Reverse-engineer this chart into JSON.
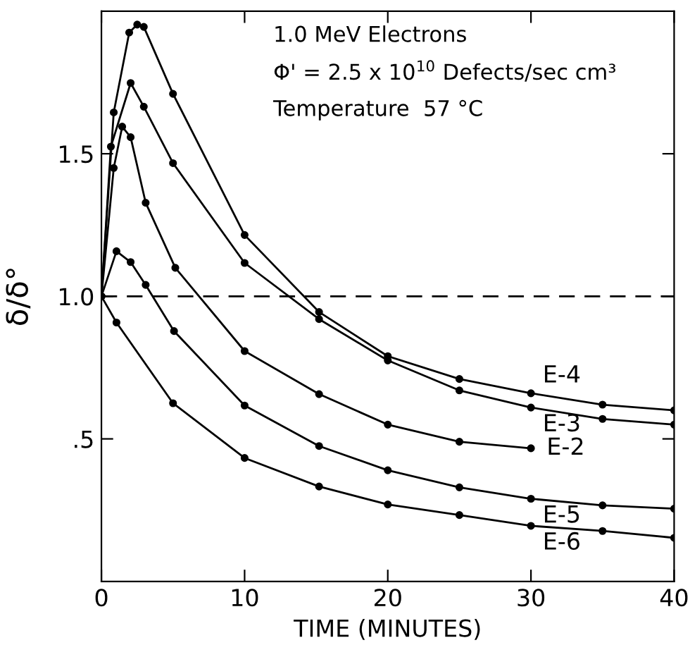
{
  "chart_data": {
    "type": "line",
    "xlabel": "TIME (MINUTES)",
    "ylabel": "δ/δ°",
    "annotations": [
      "1.0 MeV Electrons",
      "Φ' = 2.5 x 10$^{10}$ Defects/sec cm³",
      "Temperature  57 °C"
    ],
    "xlim": [
      0,
      40
    ],
    "ylim": [
      0,
      2.0
    ],
    "xticks": [
      0,
      10,
      20,
      30,
      40
    ],
    "yticks": [
      {
        "value": 0.5,
        "label": ".5"
      },
      {
        "value": 1.0,
        "label": "1.0"
      },
      {
        "value": 1.5,
        "label": "1.5"
      }
    ],
    "marker": "circle",
    "line_style": "solid",
    "grid": false,
    "legend": false,
    "ref_lines": [
      {
        "axis": "y",
        "value": 1.0,
        "line_style": "dashed"
      }
    ],
    "series": [
      {
        "name": "E-4",
        "color": "#000000",
        "x": [
          0,
          0.86,
          1.94,
          2.5,
          2.96,
          5,
          10,
          15.2,
          20,
          25,
          30,
          35,
          40
        ],
        "values": [
          1.0,
          1.645,
          1.925,
          1.953,
          1.945,
          1.71,
          1.215,
          0.945,
          0.79,
          0.71,
          0.66,
          0.62,
          0.6
        ]
      },
      {
        "name": "E-3",
        "color": "#000000",
        "x": [
          0,
          0.66,
          2.04,
          2.96,
          5,
          10,
          15.2,
          20,
          25,
          30,
          35,
          40
        ],
        "values": [
          1.0,
          1.525,
          1.748,
          1.665,
          1.467,
          1.117,
          0.92,
          0.775,
          0.67,
          0.61,
          0.57,
          0.55
        ]
      },
      {
        "name": "E-2",
        "color": "#000000",
        "x": [
          0,
          0.86,
          1.45,
          2.04,
          3.09,
          5.16,
          10,
          15.2,
          20,
          25,
          30
        ],
        "values": [
          1.0,
          1.45,
          1.595,
          1.558,
          1.328,
          1.1,
          0.808,
          0.657,
          0.55,
          0.49,
          0.467
        ]
      },
      {
        "name": "E-5",
        "color": "#000000",
        "x": [
          0,
          1.05,
          2.04,
          3.09,
          5.07,
          10,
          15.2,
          20,
          25,
          30,
          35,
          40
        ],
        "values": [
          1.0,
          1.158,
          1.12,
          1.04,
          0.878,
          0.617,
          0.475,
          0.39,
          0.33,
          0.29,
          0.267,
          0.255
        ]
      },
      {
        "name": "E-6",
        "color": "#000000",
        "x": [
          0,
          1.05,
          5,
          10,
          15.2,
          20,
          25,
          30,
          35,
          40
        ],
        "values": [
          1.0,
          0.908,
          0.625,
          0.433,
          0.333,
          0.27,
          0.233,
          0.195,
          0.177,
          0.153
        ]
      }
    ]
  }
}
